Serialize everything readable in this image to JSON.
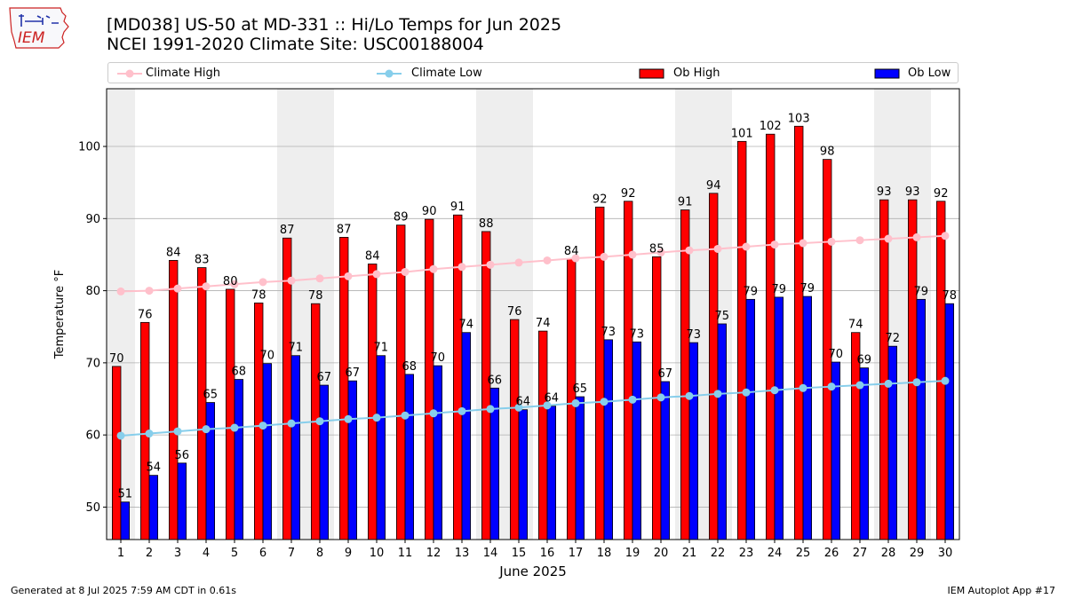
{
  "header": {
    "logo_text": "IEM",
    "title_line1": "[MD038] US-50 at MD-331 :: Hi/Lo Temps for Jun 2025",
    "title_line2": "NCEI 1991-2020 Climate Site: USC00188004"
  },
  "footer": {
    "generated": "Generated at 8 Jul 2025 7:59 AM CDT in 0.61s",
    "app": "IEM Autoplot App #17"
  },
  "colors": {
    "ob_high": "#ff0000",
    "ob_low": "#0000ff",
    "climate_high": "#ffc0cb",
    "climate_low": "#87ceeb",
    "weekend_band": "#eeeeee",
    "grid": "#b0b0b0",
    "logo": "#cc2222"
  },
  "chart_data": {
    "type": "bar",
    "xlabel": "June 2025",
    "ylabel": "Temperature °F",
    "xlim": [
      0.5,
      30.5
    ],
    "ylim": [
      45.5,
      108
    ],
    "yticks": [
      50,
      60,
      70,
      80,
      90,
      100
    ],
    "grid": "horizontal",
    "legend_position": "top",
    "weekend_days": [
      1,
      7,
      8,
      14,
      15,
      21,
      22,
      28,
      29
    ],
    "categories": [
      1,
      2,
      3,
      4,
      5,
      6,
      7,
      8,
      9,
      10,
      11,
      12,
      13,
      14,
      15,
      16,
      17,
      18,
      19,
      20,
      21,
      22,
      23,
      24,
      25,
      26,
      27,
      28,
      29,
      30
    ],
    "series": [
      {
        "name": "Ob High",
        "kind": "bar",
        "values": [
          69.5,
          75.6,
          84.2,
          83.2,
          80.2,
          78.3,
          87.3,
          78.2,
          87.4,
          83.7,
          89.1,
          89.9,
          90.5,
          88.2,
          76.0,
          74.4,
          84.4,
          91.6,
          92.4,
          84.7,
          91.2,
          93.5,
          100.7,
          101.7,
          102.8,
          98.2,
          74.2,
          92.6,
          92.6,
          92.4
        ],
        "labels": [
          "70",
          "76",
          "84",
          "83",
          "80",
          "78",
          "87",
          "78",
          "87",
          "84",
          "89",
          "90",
          "91",
          "88",
          "76",
          "74",
          "84",
          "92",
          "92",
          "85",
          "91",
          "94",
          "101",
          "102",
          "103",
          "98",
          "74",
          "93",
          "93",
          "92"
        ]
      },
      {
        "name": "Ob Low",
        "kind": "bar",
        "values": [
          50.7,
          54.4,
          56.1,
          64.5,
          67.7,
          69.9,
          71.0,
          66.9,
          67.5,
          71.0,
          68.4,
          69.6,
          74.2,
          66.5,
          63.5,
          64.0,
          65.3,
          73.2,
          72.9,
          67.4,
          72.8,
          75.4,
          78.8,
          79.1,
          79.2,
          70.1,
          69.3,
          72.3,
          78.8,
          78.2
        ],
        "labels": [
          "51",
          "54",
          "56",
          "65",
          "68",
          "70",
          "71",
          "67",
          "67",
          "71",
          "68",
          "70",
          "74",
          "66",
          "64",
          "64",
          "65",
          "73",
          "73",
          "67",
          "73",
          "75",
          "79",
          "79",
          "79",
          "70",
          "69",
          "72",
          "79",
          "78"
        ]
      },
      {
        "name": "Climate High",
        "kind": "line",
        "values": [
          79.9,
          80.0,
          80.3,
          80.6,
          80.9,
          81.2,
          81.4,
          81.7,
          82.0,
          82.3,
          82.6,
          83.0,
          83.3,
          83.6,
          83.9,
          84.2,
          84.5,
          84.7,
          85.0,
          85.3,
          85.6,
          85.8,
          86.1,
          86.4,
          86.6,
          86.8,
          87.0,
          87.2,
          87.4,
          87.6
        ]
      },
      {
        "name": "Climate Low",
        "kind": "line",
        "values": [
          59.9,
          60.2,
          60.5,
          60.8,
          61.0,
          61.3,
          61.6,
          61.9,
          62.2,
          62.4,
          62.7,
          63.0,
          63.3,
          63.6,
          63.8,
          64.1,
          64.4,
          64.6,
          64.9,
          65.2,
          65.4,
          65.7,
          65.9,
          66.2,
          66.5,
          66.7,
          66.9,
          67.1,
          67.3,
          67.5
        ]
      }
    ]
  }
}
